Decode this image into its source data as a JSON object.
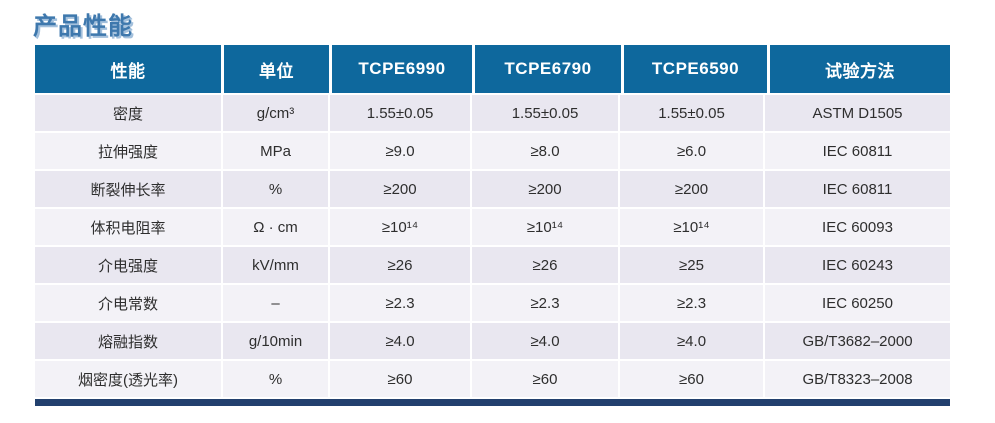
{
  "title": "产品性能",
  "colors": {
    "header_bg": "#0e689d",
    "row_odd_bg": "#e9e7f0",
    "row_even_bg": "#f3f2f7",
    "bottom_bar": "#22406e",
    "title_color": "#3e78ad",
    "title_shadow": "#a3c0dc",
    "body_text": "#2e2e2e"
  },
  "table": {
    "columns": [
      "性能",
      "单位",
      "TCPE6990",
      "TCPE6790",
      "TCPE6590",
      "试验方法"
    ],
    "rows": [
      [
        "密度",
        "g/cm³",
        "1.55±0.05",
        "1.55±0.05",
        "1.55±0.05",
        "ASTM D1505"
      ],
      [
        "拉伸强度",
        "MPa",
        "≥9.0",
        "≥8.0",
        "≥6.0",
        "IEC 60811"
      ],
      [
        "断裂伸长率",
        "%",
        "≥200",
        "≥200",
        "≥200",
        "IEC 60811"
      ],
      [
        "体积电阻率",
        "Ω · cm",
        "≥10¹⁴",
        "≥10¹⁴",
        "≥10¹⁴",
        "IEC 60093"
      ],
      [
        "介电强度",
        "kV/mm",
        "≥26",
        "≥26",
        "≥25",
        "IEC 60243"
      ],
      [
        "介电常数",
        "–",
        "≥2.3",
        "≥2.3",
        "≥2.3",
        "IEC 60250"
      ],
      [
        "熔融指数",
        "g/10min",
        "≥4.0",
        "≥4.0",
        "≥4.0",
        "GB/T3682–2000"
      ],
      [
        "烟密度(透光率)",
        "%",
        "≥60",
        "≥60",
        "≥60",
        "GB/T8323–2008"
      ]
    ]
  }
}
